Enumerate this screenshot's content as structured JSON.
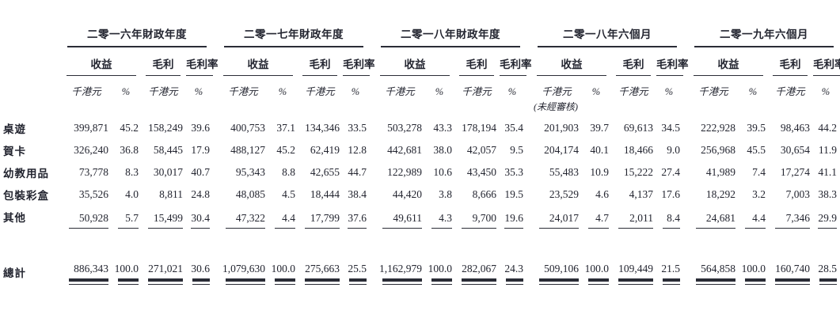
{
  "colors": {
    "ink": "#232530",
    "rule": "#2a2c36",
    "background": "#ffffff"
  },
  "table": {
    "periods": [
      {
        "title": "二零一六年財政年度",
        "note": ""
      },
      {
        "title": "二零一七年財政年度",
        "note": ""
      },
      {
        "title": "二零一八年財政年度",
        "note": ""
      },
      {
        "title": "二零一八年六個月",
        "note": "(未經審核)"
      },
      {
        "title": "二零一九年六個月",
        "note": ""
      }
    ],
    "subheaders": {
      "revenue": "收益",
      "gross_profit": "毛利",
      "gross_margin": "毛利率"
    },
    "units": {
      "thousand_hkd": "千港元",
      "percent": "%"
    },
    "rows": [
      {
        "label": "桌遊",
        "values": [
          [
            "399,871",
            "45.2",
            "158,249",
            "39.6"
          ],
          [
            "400,753",
            "37.1",
            "134,346",
            "33.5"
          ],
          [
            "503,278",
            "43.3",
            "178,194",
            "35.4"
          ],
          [
            "201,903",
            "39.7",
            "69,613",
            "34.5"
          ],
          [
            "222,928",
            "39.5",
            "98,463",
            "44.2"
          ]
        ]
      },
      {
        "label": "賀卡",
        "values": [
          [
            "326,240",
            "36.8",
            "58,445",
            "17.9"
          ],
          [
            "488,127",
            "45.2",
            "62,419",
            "12.8"
          ],
          [
            "442,681",
            "38.0",
            "42,057",
            "9.5"
          ],
          [
            "204,174",
            "40.1",
            "18,466",
            "9.0"
          ],
          [
            "256,968",
            "45.5",
            "30,654",
            "11.9"
          ]
        ]
      },
      {
        "label": "幼教用品",
        "values": [
          [
            "73,778",
            "8.3",
            "30,017",
            "40.7"
          ],
          [
            "95,343",
            "8.8",
            "42,655",
            "44.7"
          ],
          [
            "122,989",
            "10.6",
            "43,450",
            "35.3"
          ],
          [
            "55,483",
            "10.9",
            "15,222",
            "27.4"
          ],
          [
            "41,989",
            "7.4",
            "17,274",
            "41.1"
          ]
        ]
      },
      {
        "label": "包裝彩盒",
        "values": [
          [
            "35,526",
            "4.0",
            "8,811",
            "24.8"
          ],
          [
            "48,085",
            "4.5",
            "18,444",
            "38.4"
          ],
          [
            "44,420",
            "3.8",
            "8,666",
            "19.5"
          ],
          [
            "23,529",
            "4.6",
            "4,137",
            "17.6"
          ],
          [
            "18,292",
            "3.2",
            "7,003",
            "38.3"
          ]
        ]
      },
      {
        "label": "其他",
        "values": [
          [
            "50,928",
            "5.7",
            "15,499",
            "30.4"
          ],
          [
            "47,322",
            "4.4",
            "17,799",
            "37.6"
          ],
          [
            "49,611",
            "4.3",
            "9,700",
            "19.6"
          ],
          [
            "24,017",
            "4.7",
            "2,011",
            "8.4"
          ],
          [
            "24,681",
            "4.4",
            "7,346",
            "29.9"
          ]
        ]
      }
    ],
    "total": {
      "label": "總計",
      "values": [
        [
          "886,343",
          "100.0",
          "271,021",
          "30.6"
        ],
        [
          "1,079,630",
          "100.0",
          "275,663",
          "25.5"
        ],
        [
          "1,162,979",
          "100.0",
          "282,067",
          "24.3"
        ],
        [
          "509,106",
          "100.0",
          "109,449",
          "21.5"
        ],
        [
          "564,858",
          "100.0",
          "160,740",
          "28.5"
        ]
      ]
    }
  }
}
